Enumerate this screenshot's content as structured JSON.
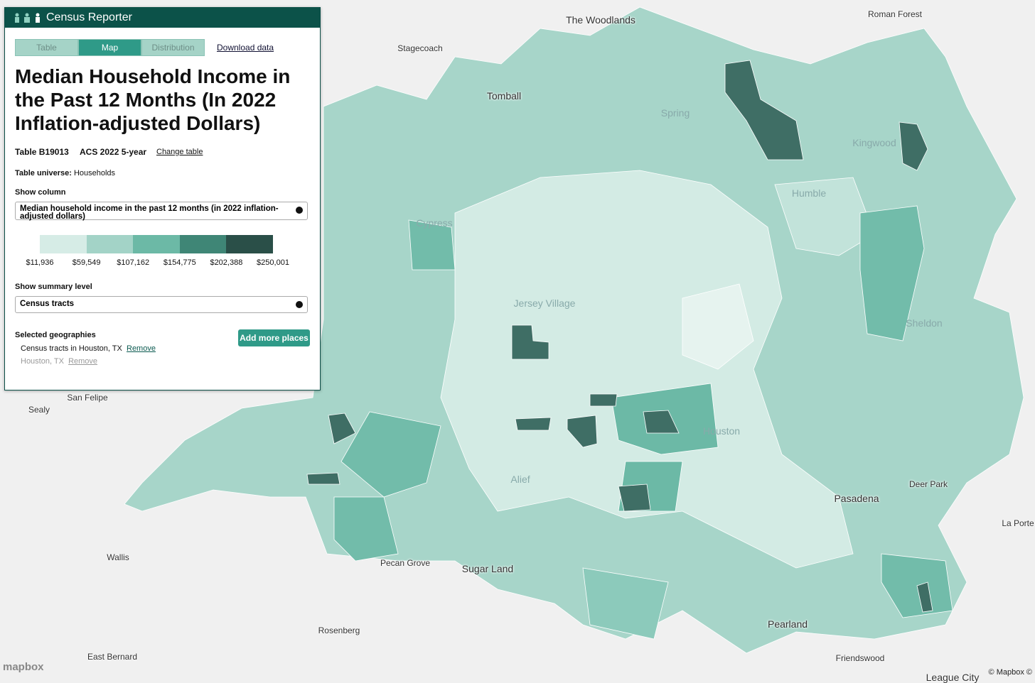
{
  "header": {
    "brand": "Census Reporter"
  },
  "tabs": [
    "Table",
    "Map",
    "Distribution"
  ],
  "download_link": "Download data",
  "title": "Median Household Income in the Past 12 Months (In 2022 Inflation-adjusted Dollars)",
  "table_id": "Table B19013",
  "release": "ACS 2022 5-year",
  "change_table": "Change table",
  "universe_label": "Table universe:",
  "universe": "Households",
  "show_column_label": "Show column",
  "column_select": "Median household income in the past 12 months (in 2022 inflation-adjusted dollars)",
  "legend": {
    "items": [
      {
        "label": "$11,936",
        "color": "#d6ece6"
      },
      {
        "label": "$59,549",
        "color": "#a3d3c7"
      },
      {
        "label": "$107,162",
        "color": "#6cb9a6"
      },
      {
        "label": "$154,775",
        "color": "#3f8676"
      },
      {
        "label": "$202,388",
        "color": "#2a4f48"
      },
      {
        "label": "$250,001"
      }
    ]
  },
  "summary_level_label": "Show summary level",
  "summary_select": "Census tracts",
  "selected_label": "Selected geographies",
  "add_button": "Add more places",
  "geographies": [
    {
      "name": "Census tracts in Houston, TX",
      "remove": "Remove"
    },
    {
      "name": "Houston, TX",
      "remove": "Remove"
    }
  ],
  "map": {
    "labels": [
      "The Woodlands",
      "Roman Forest",
      "Stagecoach",
      "Tomball",
      "Spring",
      "Kingwood",
      "Humble",
      "Cypress",
      "Jersey Village",
      "Sheldon",
      "San Felipe",
      "Sealy",
      "Houston",
      "Alief",
      "Deer Park",
      "Pasadena",
      "La Porte",
      "Wallis",
      "Pecan Grove",
      "Sugar Land",
      "Pearland",
      "Rosenberg",
      "East Bernard",
      "Friendswood",
      "League City"
    ],
    "logo": "mapbox",
    "attribution": "© Mapbox ©"
  }
}
